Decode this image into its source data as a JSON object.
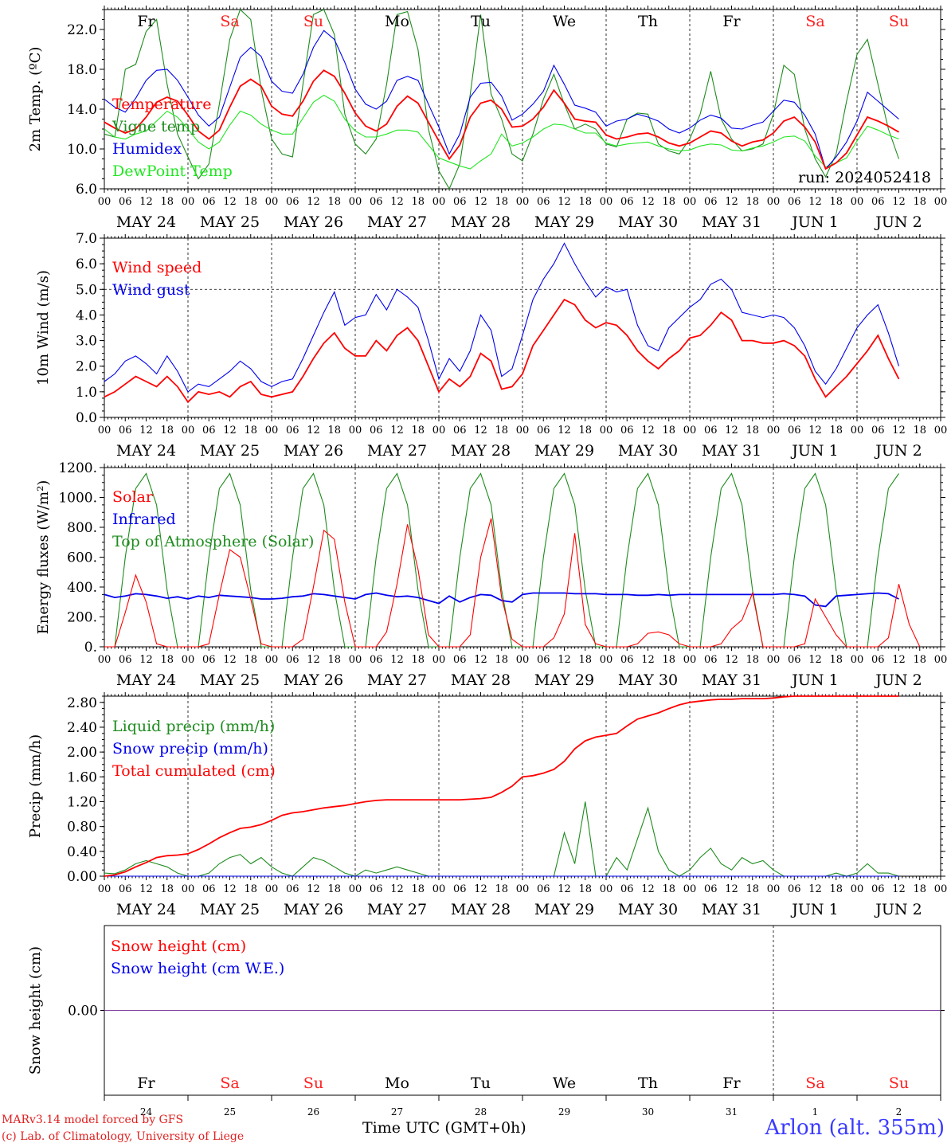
{
  "chart_data": [
    {
      "type": "line",
      "ylabel": "2m Temp. (ºC)",
      "ylim": [
        6.0,
        24.0
      ],
      "yticks": [
        "6.0",
        "10.0",
        "14.0",
        "18.0",
        "22.0"
      ],
      "weekdays": [
        "Fr",
        "Sa",
        "Su",
        "Mo",
        "Tu",
        "We",
        "Th",
        "Fr",
        "Sa",
        "Su"
      ],
      "run_label": "run: 2024052418",
      "series": [
        {
          "name": "Temperature",
          "color": "#ff0000",
          "values": [
            12.7,
            12.1,
            11.6,
            12.0,
            13.2,
            14.7,
            15.2,
            14.8,
            13.4,
            11.8,
            11.0,
            11.9,
            14.2,
            16.3,
            17.0,
            16.3,
            14.3,
            13.5,
            13.3,
            14.8,
            16.8,
            17.9,
            17.3,
            15.6,
            13.6,
            12.3,
            11.8,
            12.5,
            14.3,
            15.3,
            14.6,
            12.7,
            10.8,
            9.0,
            10.4,
            13.2,
            14.6,
            14.9,
            14.0,
            12.2,
            12.3,
            13.0,
            14.2,
            15.9,
            14.6,
            13.0,
            12.8,
            12.7,
            11.4,
            11.0,
            11.2,
            11.5,
            11.6,
            11.2,
            10.6,
            10.3,
            10.6,
            11.2,
            11.8,
            11.6,
            10.8,
            10.3,
            10.7,
            10.9,
            11.6,
            12.8,
            13.2,
            12.2,
            10.7,
            8.0,
            8.6,
            9.6,
            11.4,
            13.2,
            12.8,
            12.3,
            11.7
          ]
        },
        {
          "name": "Vigne temp",
          "color": "#1e8c1e",
          "values": [
            11.5,
            11.2,
            18.0,
            18.5,
            21.8,
            23.0,
            16.5,
            11.5,
            9.2,
            7.0,
            8.5,
            14.5,
            21.0,
            24.0,
            23.0,
            16.0,
            11.0,
            9.5,
            9.2,
            16.5,
            23.5,
            24.0,
            21.5,
            13.5,
            10.5,
            9.5,
            11.0,
            16.5,
            23.5,
            23.8,
            20.0,
            12.0,
            7.8,
            6.0,
            8.5,
            15.5,
            23.5,
            15.5,
            13.0,
            9.5,
            8.8,
            11.5,
            15.0,
            17.5,
            14.5,
            12.0,
            12.5,
            12.0,
            10.5,
            10.2,
            13.0,
            13.6,
            13.5,
            10.5,
            9.8,
            9.5,
            11.0,
            13.5,
            17.8,
            13.0,
            11.0,
            9.8,
            10.0,
            10.5,
            13.5,
            18.4,
            17.5,
            12.0,
            9.0,
            7.2,
            9.5,
            14.8,
            19.5,
            21.0,
            16.5,
            12.0,
            9.0
          ]
        },
        {
          "name": "Humidex",
          "color": "#0000ee",
          "values": [
            15.0,
            14.2,
            13.7,
            15.1,
            16.9,
            17.9,
            18.0,
            16.9,
            15.2,
            13.4,
            12.3,
            13.2,
            16.2,
            19.2,
            20.2,
            19.3,
            16.8,
            15.8,
            15.6,
            17.5,
            20.2,
            21.9,
            21.0,
            18.7,
            16.0,
            14.5,
            14.0,
            14.8,
            16.9,
            17.3,
            16.9,
            14.5,
            12.2,
            9.5,
            11.5,
            15.2,
            16.6,
            16.7,
            15.3,
            12.9,
            13.5,
            14.5,
            15.8,
            18.4,
            16.5,
            14.4,
            14.1,
            13.7,
            12.3,
            12.8,
            13.0,
            13.5,
            13.2,
            12.8,
            12.0,
            11.6,
            12.1,
            12.9,
            13.4,
            13.1,
            12.1,
            12.0,
            12.4,
            12.7,
            13.8,
            14.9,
            14.7,
            13.4,
            11.5,
            8.0,
            9.2,
            10.7,
            12.8,
            15.7,
            14.8,
            13.9,
            13.0
          ]
        },
        {
          "name": "DewPoint Temp",
          "color": "#22e622",
          "values": [
            12.0,
            11.2,
            11.0,
            11.5,
            11.8,
            12.8,
            13.8,
            13.2,
            12.0,
            10.7,
            10.0,
            10.7,
            12.4,
            13.8,
            13.4,
            12.5,
            11.9,
            11.5,
            11.5,
            13.1,
            14.7,
            15.4,
            14.8,
            13.0,
            11.8,
            11.2,
            11.2,
            11.5,
            11.9,
            11.9,
            11.7,
            10.4,
            9.1,
            8.7,
            8.3,
            8.0,
            8.8,
            9.5,
            11.5,
            10.3,
            10.6,
            11.2,
            12.0,
            12.5,
            12.4,
            12.0,
            11.6,
            11.6,
            10.6,
            10.3,
            10.5,
            10.6,
            10.7,
            10.3,
            10.0,
            9.8,
            9.9,
            10.3,
            10.5,
            10.4,
            9.9,
            9.8,
            10.1,
            10.3,
            10.7,
            11.2,
            11.3,
            10.8,
            9.3,
            8.2,
            8.6,
            9.1,
            10.8,
            12.3,
            11.9,
            11.4,
            11.0
          ]
        }
      ]
    },
    {
      "type": "line",
      "ylabel": "10m Wind (m/s)",
      "ylim": [
        0.0,
        7.0
      ],
      "yticks": [
        "0.0",
        "1.0",
        "2.0",
        "3.0",
        "4.0",
        "5.0",
        "6.0",
        "7.0"
      ],
      "reference_line": 5.0,
      "series": [
        {
          "name": "Wind speed",
          "color": "#ff0000",
          "values": [
            0.8,
            1.0,
            1.3,
            1.6,
            1.4,
            1.2,
            1.6,
            1.2,
            0.6,
            1.0,
            0.9,
            1.0,
            0.8,
            1.2,
            1.4,
            0.9,
            0.8,
            0.9,
            1.0,
            1.6,
            2.3,
            2.9,
            3.3,
            2.7,
            2.4,
            2.4,
            3.0,
            2.6,
            3.2,
            3.5,
            3.0,
            2.0,
            1.0,
            1.5,
            1.2,
            1.6,
            2.5,
            2.2,
            1.1,
            1.2,
            1.7,
            2.8,
            3.4,
            4.0,
            4.6,
            4.4,
            3.8,
            3.5,
            3.7,
            3.6,
            3.2,
            2.6,
            2.2,
            1.9,
            2.3,
            2.6,
            3.1,
            3.2,
            3.6,
            4.1,
            3.8,
            3.0,
            3.0,
            2.9,
            2.9,
            3.0,
            2.8,
            2.4,
            1.5,
            0.8,
            1.2,
            1.6,
            2.1,
            2.6,
            3.2,
            2.3,
            1.5
          ]
        },
        {
          "name": "Wind gust",
          "color": "#0000ee",
          "values": [
            1.4,
            1.7,
            2.2,
            2.4,
            2.1,
            1.7,
            2.4,
            1.8,
            1.0,
            1.3,
            1.2,
            1.5,
            1.8,
            2.2,
            1.9,
            1.4,
            1.2,
            1.4,
            1.5,
            2.3,
            3.2,
            4.1,
            4.9,
            3.6,
            3.9,
            4.0,
            4.8,
            4.2,
            5.0,
            4.7,
            4.3,
            3.0,
            1.5,
            2.3,
            1.8,
            2.6,
            4.0,
            3.4,
            1.6,
            1.9,
            3.2,
            4.6,
            5.4,
            6.0,
            6.8,
            6.0,
            5.3,
            4.7,
            5.1,
            4.9,
            5.0,
            3.6,
            2.8,
            2.6,
            3.5,
            3.9,
            4.3,
            4.6,
            5.2,
            5.4,
            5.0,
            4.1,
            4.0,
            3.9,
            4.0,
            3.9,
            3.5,
            2.8,
            1.8,
            1.3,
            1.9,
            2.7,
            3.5,
            4.0,
            4.4,
            3.3,
            2.0
          ]
        }
      ]
    },
    {
      "type": "line",
      "ylabel": "Energy fluxes (W/m²)",
      "ylim": [
        0,
        1200
      ],
      "yticks": [
        "0.",
        "200.",
        "400.",
        "600.",
        "800.",
        "1000.",
        "1200."
      ],
      "series": [
        {
          "name": "Solar",
          "color": "#ff0000",
          "values": [
            0,
            0,
            230,
            480,
            300,
            20,
            0,
            0,
            0,
            0,
            20,
            350,
            650,
            600,
            320,
            20,
            0,
            0,
            0,
            50,
            400,
            780,
            720,
            300,
            0,
            0,
            0,
            100,
            420,
            820,
            520,
            80,
            0,
            0,
            0,
            80,
            600,
            860,
            330,
            50,
            0,
            0,
            0,
            60,
            220,
            760,
            150,
            20,
            0,
            0,
            0,
            20,
            90,
            100,
            80,
            20,
            0,
            0,
            0,
            20,
            120,
            180,
            360,
            0,
            0,
            0,
            0,
            20,
            320,
            200,
            80,
            0,
            0,
            0,
            0,
            60,
            420,
            150,
            0
          ]
        },
        {
          "name": "Infrared",
          "color": "#0000ee",
          "values": [
            350,
            330,
            340,
            355,
            350,
            340,
            325,
            335,
            320,
            340,
            330,
            345,
            340,
            335,
            330,
            320,
            320,
            325,
            335,
            340,
            355,
            350,
            340,
            330,
            320,
            350,
            360,
            345,
            335,
            340,
            330,
            310,
            290,
            340,
            300,
            330,
            350,
            345,
            310,
            300,
            350,
            360,
            360,
            360,
            360,
            355,
            355,
            355,
            350,
            350,
            350,
            345,
            345,
            350,
            345,
            350,
            350,
            350,
            350,
            350,
            350,
            350,
            350,
            350,
            350,
            355,
            350,
            340,
            280,
            270,
            340,
            345,
            350,
            355,
            360,
            355,
            320
          ]
        },
        {
          "name": "Top of Atmosphere (Solar)",
          "color": "#1e8c1e",
          "values": [
            0,
            0,
            600,
            1060,
            1160,
            950,
            380,
            0,
            0,
            0,
            600,
            1060,
            1160,
            950,
            380,
            0,
            0,
            0,
            600,
            1060,
            1160,
            950,
            380,
            0,
            0,
            0,
            600,
            1060,
            1160,
            950,
            380,
            0,
            0,
            0,
            600,
            1060,
            1160,
            950,
            380,
            0,
            0,
            0,
            600,
            1060,
            1160,
            950,
            380,
            0,
            0,
            0,
            600,
            1060,
            1160,
            950,
            380,
            0,
            0,
            0,
            600,
            1060,
            1160,
            950,
            380,
            0,
            0,
            0,
            600,
            1060,
            1160,
            950,
            380,
            0,
            0,
            0,
            600,
            1060,
            1160
          ]
        }
      ]
    },
    {
      "type": "line",
      "ylabel": "Precip (mm/h)",
      "ylim": [
        0.0,
        2.9
      ],
      "yticks": [
        "0.00",
        "0.40",
        "0.80",
        "1.20",
        "1.60",
        "2.00",
        "2.40",
        "2.80"
      ],
      "series": [
        {
          "name": "Liquid precip (mm/h)",
          "color": "#1e8c1e",
          "values": [
            0.05,
            0.04,
            0.1,
            0.2,
            0.25,
            0.2,
            0.15,
            0.05,
            0.0,
            0.0,
            0.05,
            0.2,
            0.3,
            0.35,
            0.2,
            0.3,
            0.15,
            0.05,
            0.0,
            0.15,
            0.3,
            0.25,
            0.15,
            0.05,
            0.0,
            0.1,
            0.05,
            0.1,
            0.15,
            0.1,
            0.05,
            0.0,
            0.0,
            0.0,
            0.0,
            0.0,
            0.0,
            0.0,
            0.0,
            0.0,
            0.0,
            0.0,
            0.0,
            0.0,
            0.7,
            0.2,
            1.2,
            0.0,
            0.0,
            0.3,
            0.1,
            0.6,
            1.1,
            0.4,
            0.1,
            0.0,
            0.1,
            0.3,
            0.45,
            0.2,
            0.1,
            0.3,
            0.2,
            0.25,
            0.1,
            0.0,
            0.0,
            0.0,
            0.0,
            0.0,
            0.05,
            0.0,
            0.05,
            0.2,
            0.05,
            0.05,
            0.0
          ]
        },
        {
          "name": "Snow precip (mm/h)",
          "color": "#0000ee",
          "values": [
            0,
            0,
            0,
            0,
            0,
            0,
            0,
            0,
            0,
            0,
            0,
            0,
            0,
            0,
            0,
            0,
            0,
            0,
            0,
            0,
            0,
            0,
            0,
            0,
            0,
            0,
            0,
            0,
            0,
            0,
            0,
            0,
            0,
            0,
            0,
            0,
            0,
            0,
            0,
            0,
            0,
            0,
            0,
            0,
            0,
            0,
            0,
            0,
            0,
            0,
            0,
            0,
            0,
            0,
            0,
            0,
            0,
            0,
            0,
            0,
            0,
            0,
            0,
            0,
            0,
            0,
            0,
            0,
            0,
            0,
            0,
            0,
            0,
            0,
            0,
            0,
            0
          ]
        },
        {
          "name": "Total cumulated (cm)",
          "color": "#ff0000",
          "values": [
            0.0,
            0.02,
            0.07,
            0.15,
            0.22,
            0.3,
            0.33,
            0.34,
            0.36,
            0.43,
            0.52,
            0.62,
            0.7,
            0.77,
            0.79,
            0.83,
            0.9,
            0.98,
            1.02,
            1.04,
            1.07,
            1.1,
            1.12,
            1.14,
            1.17,
            1.2,
            1.22,
            1.23,
            1.23,
            1.23,
            1.23,
            1.23,
            1.23,
            1.23,
            1.23,
            1.24,
            1.25,
            1.27,
            1.35,
            1.45,
            1.6,
            1.62,
            1.66,
            1.72,
            1.85,
            2.05,
            2.18,
            2.24,
            2.27,
            2.3,
            2.42,
            2.53,
            2.58,
            2.63,
            2.7,
            2.76,
            2.8,
            2.82,
            2.84,
            2.85,
            2.85,
            2.86,
            2.86,
            2.86,
            2.87,
            2.89,
            2.92,
            2.95,
            2.96,
            2.97,
            2.97,
            2.97,
            2.98,
            2.98,
            2.98,
            2.98,
            2.98
          ]
        }
      ]
    },
    {
      "type": "line",
      "ylabel": "Snow height (cm)",
      "yticks": [
        "0.00"
      ],
      "series": [
        {
          "name": "Snow height (cm)",
          "color": "#ff0000",
          "values": [
            0.0,
            0.0
          ]
        },
        {
          "name": "Snow height (cm W.E.)",
          "color": "#0000ee",
          "values": [
            0.0,
            0.0
          ]
        }
      ],
      "weekdays": [
        "Fr",
        "Sa",
        "Su",
        "Mo",
        "Tu",
        "We",
        "Th",
        "Fr",
        "Sa",
        "Su"
      ],
      "day_numbers": [
        "24",
        "25",
        "26",
        "27",
        "28",
        "29",
        "30",
        "31",
        "1",
        "2"
      ]
    }
  ],
  "hour_ticks": [
    "00",
    "06",
    "12",
    "18"
  ],
  "day_labels": [
    "MAY 24",
    "MAY 25",
    "MAY 26",
    "MAY 27",
    "MAY 28",
    "MAY 29",
    "MAY 30",
    "MAY 31",
    "JUN  1",
    "JUN  2"
  ],
  "weekend_color": "#ff2020",
  "footer": {
    "credit_line1": "MARv3.14 model forced by GFS",
    "credit_line2": "(c) Lab. of Climatology, University of Liege",
    "xtitle": "Time UTC (GMT+0h)",
    "station": "Arlon (alt. 355m)"
  }
}
